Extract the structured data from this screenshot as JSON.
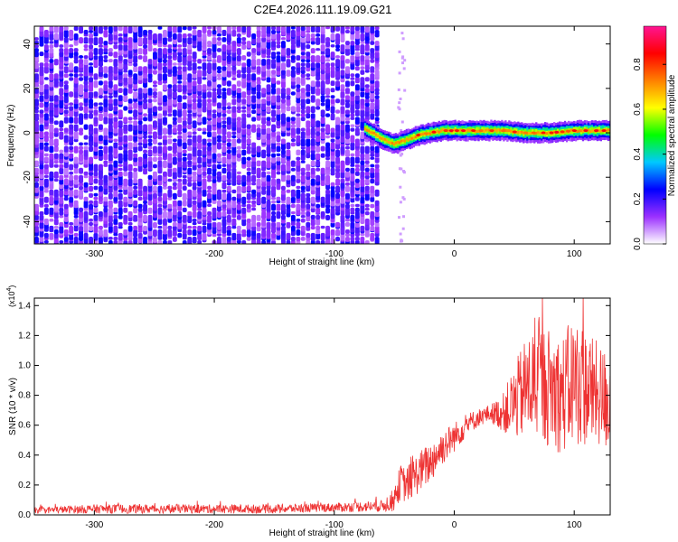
{
  "title": "C2E4.2026.111.19.09.G21",
  "chart_data": [
    {
      "type": "heatmap",
      "id": "spectrogram",
      "xlabel": "Height of straight line (km)",
      "ylabel": "Frequency (Hz)",
      "xlim": [
        -350,
        130
      ],
      "ylim": [
        -50,
        48
      ],
      "xticks": [
        -300,
        -200,
        -100,
        0,
        100
      ],
      "xtick_labels": [
        "-300",
        "-200",
        "-100",
        "0",
        "100"
      ],
      "yticks": [
        -40,
        -20,
        0,
        20,
        40
      ],
      "ytick_labels": [
        "-40",
        "-20",
        "0",
        "20",
        "40"
      ],
      "colorbar": {
        "label": "Normalized spectral amplitude",
        "range": [
          0,
          0.97
        ],
        "ticks": [
          0.0,
          0.2,
          0.4,
          0.6,
          0.8
        ],
        "tick_labels": [
          "0.0",
          "0.2",
          "0.4",
          "0.6",
          "0.8"
        ],
        "colormap": [
          "#ffffff",
          "#9b30ff",
          "#0000ff",
          "#00c8ff",
          "#00ff00",
          "#ffff00",
          "#ff8000",
          "#ff0000",
          "#ff1493"
        ]
      },
      "noise_region_x": [
        -350,
        -62
      ],
      "signal_track": {
        "x": [
          -75,
          -60,
          -50,
          -40,
          -30,
          -20,
          -10,
          0,
          20,
          40,
          60,
          80,
          100,
          130
        ],
        "freq": [
          2,
          -3,
          -5,
          -3,
          -1,
          0,
          1,
          1,
          1,
          1,
          0,
          0,
          1,
          1
        ],
        "peak_amplitude": 0.9
      },
      "grid": false
    },
    {
      "type": "line",
      "id": "snr",
      "xlabel": "Height of straight line (km)",
      "ylabel": "SNR (10 * v/v)",
      "exponent_label": "(x10",
      "exponent_power": "4",
      "exponent_close": ")",
      "xlim": [
        -350,
        130
      ],
      "ylim": [
        0,
        1.45
      ],
      "xticks": [
        -300,
        -200,
        -100,
        0,
        100
      ],
      "xtick_labels": [
        "-300",
        "-200",
        "-100",
        "0",
        "100"
      ],
      "yticks": [
        0.0,
        0.2,
        0.4,
        0.6,
        0.8,
        1.0,
        1.2,
        1.4
      ],
      "ytick_labels": [
        "0.0",
        "0.2",
        "0.4",
        "0.6",
        "0.8",
        "1.0",
        "1.2",
        "1.4"
      ],
      "series": [
        {
          "name": "SNR",
          "color": "#ee3333",
          "x": [
            -350,
            -300,
            -250,
            -200,
            -150,
            -100,
            -60,
            -50,
            -45,
            -40,
            -30,
            -20,
            -10,
            0,
            10,
            20,
            30,
            40,
            50,
            60,
            70,
            80,
            90,
            100,
            110,
            120,
            130
          ],
          "y": [
            0.03,
            0.04,
            0.04,
            0.04,
            0.04,
            0.05,
            0.06,
            0.1,
            0.22,
            0.2,
            0.28,
            0.35,
            0.45,
            0.52,
            0.6,
            0.65,
            0.68,
            0.68,
            0.75,
            0.85,
            0.9,
            0.85,
            0.8,
            0.9,
            0.85,
            0.8,
            0.75
          ],
          "spread": [
            0.02,
            0.03,
            0.03,
            0.03,
            0.03,
            0.03,
            0.04,
            0.08,
            0.12,
            0.12,
            0.14,
            0.14,
            0.12,
            0.1,
            0.08,
            0.06,
            0.06,
            0.12,
            0.25,
            0.35,
            0.4,
            0.4,
            0.4,
            0.45,
            0.4,
            0.35,
            0.35
          ]
        }
      ],
      "grid": false
    }
  ]
}
